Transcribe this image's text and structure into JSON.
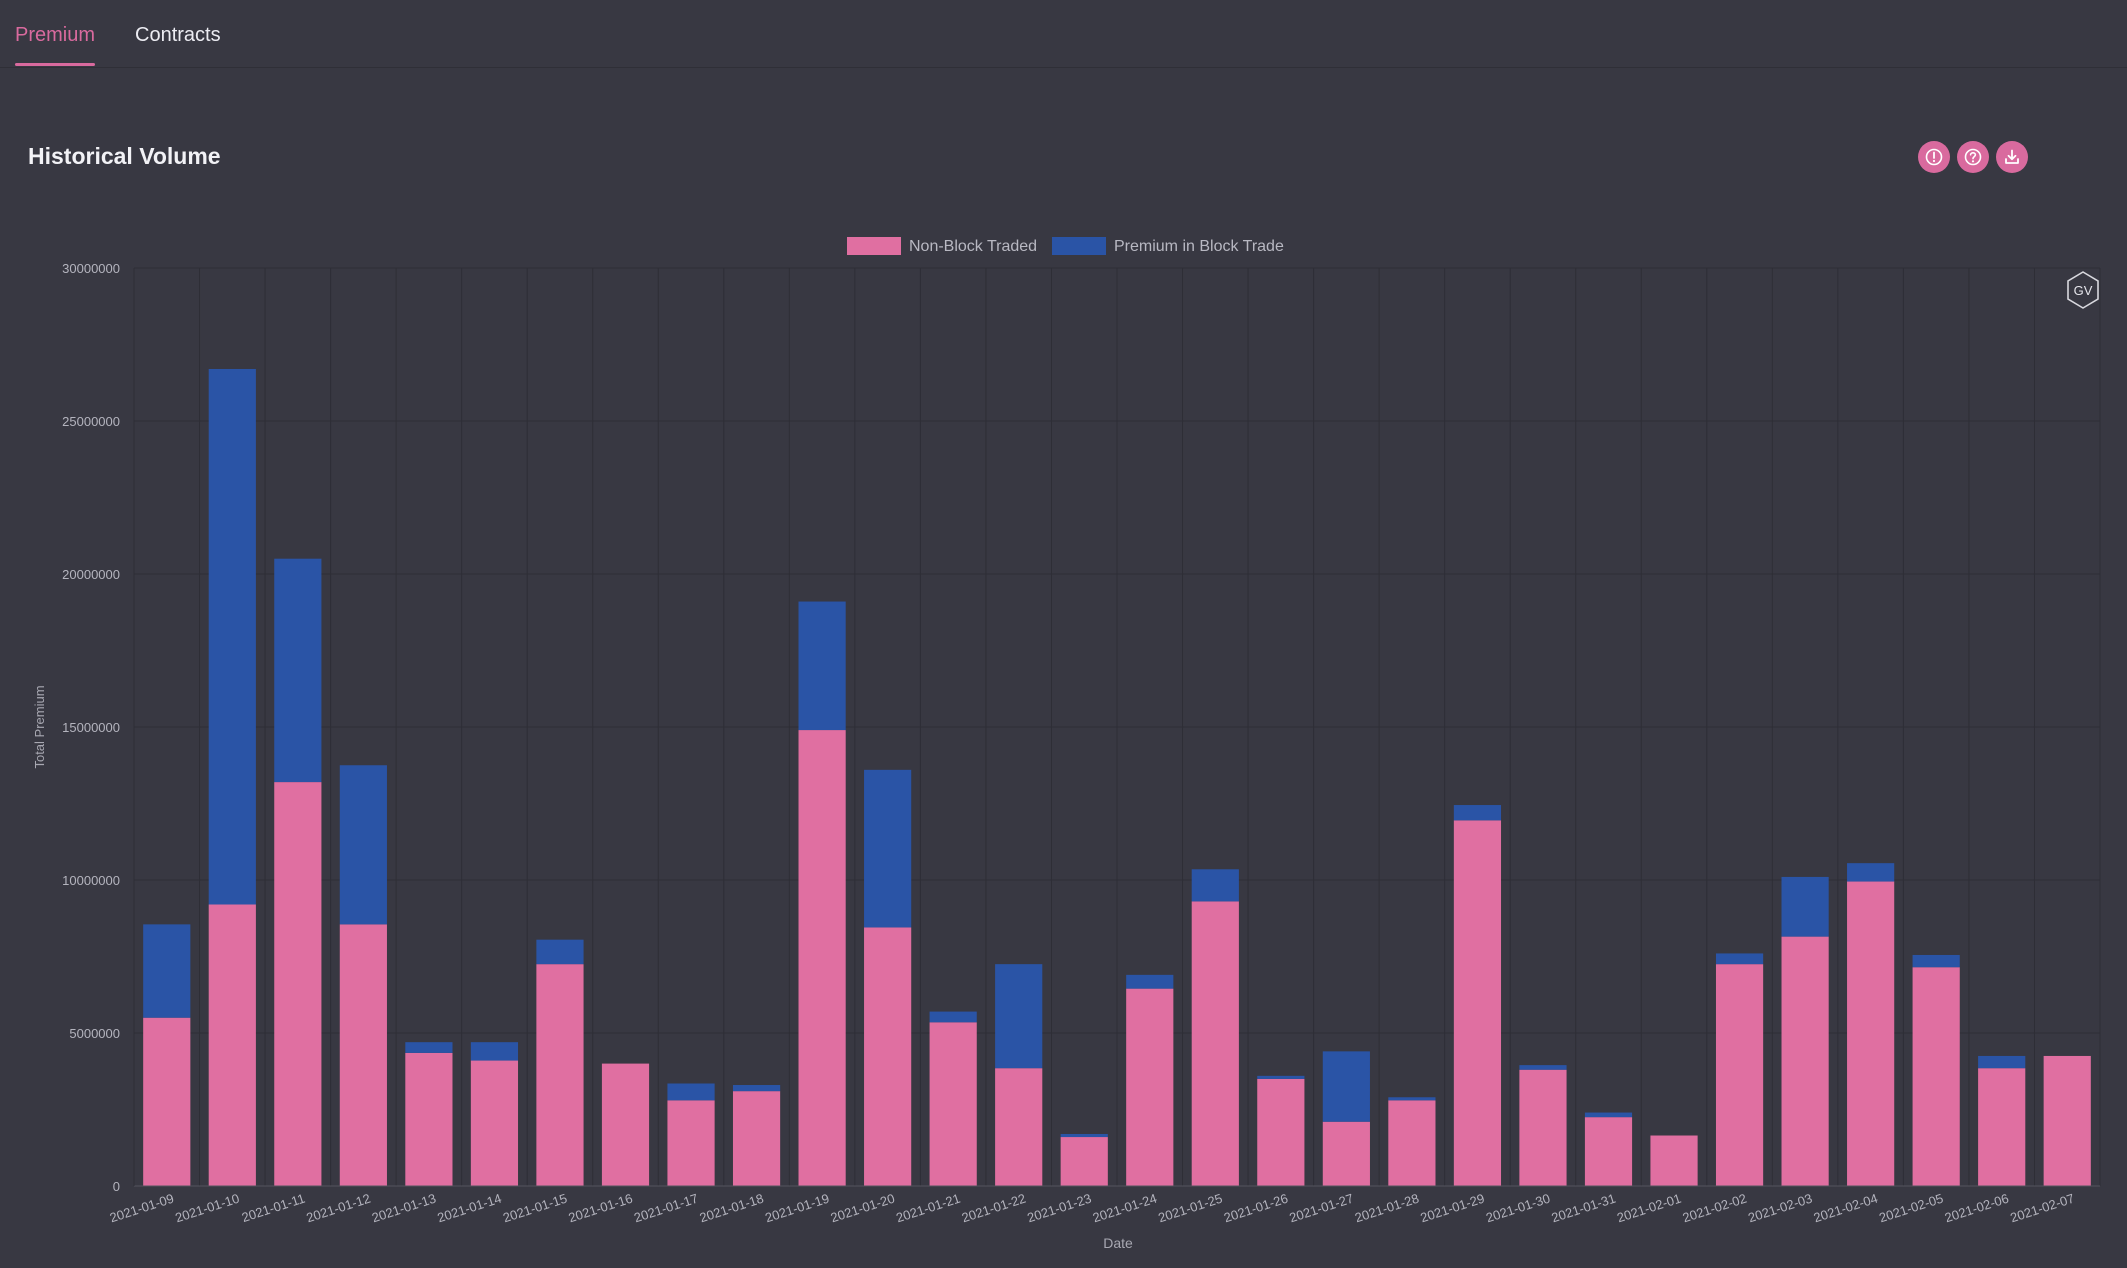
{
  "tabs": [
    {
      "label": "Premium",
      "active": true
    },
    {
      "label": "Contracts",
      "active": false
    }
  ],
  "page_title": "Historical Volume",
  "toolbar_icons": [
    "info-icon",
    "help-icon",
    "download-icon"
  ],
  "watermark": "GV",
  "colors": {
    "accent": "#d96a9e",
    "non_block": "#e06fa1",
    "block": "#2a54a6",
    "background": "#383842"
  },
  "chart_data": {
    "type": "bar",
    "stacked": true,
    "title": "",
    "xlabel": "Date",
    "ylabel": "Total Premium",
    "ylim": [
      0,
      30000000
    ],
    "yticks": [
      "0",
      "5000000",
      "10000000",
      "15000000",
      "20000000",
      "25000000",
      "30000000"
    ],
    "grid": true,
    "legend_position": "top-center",
    "categories": [
      "2021-01-09",
      "2021-01-10",
      "2021-01-11",
      "2021-01-12",
      "2021-01-13",
      "2021-01-14",
      "2021-01-15",
      "2021-01-16",
      "2021-01-17",
      "2021-01-18",
      "2021-01-19",
      "2021-01-20",
      "2021-01-21",
      "2021-01-22",
      "2021-01-23",
      "2021-01-24",
      "2021-01-25",
      "2021-01-26",
      "2021-01-27",
      "2021-01-28",
      "2021-01-29",
      "2021-01-30",
      "2021-01-31",
      "2021-02-01",
      "2021-02-02",
      "2021-02-03",
      "2021-02-04",
      "2021-02-05",
      "2021-02-06",
      "2021-02-07"
    ],
    "series": [
      {
        "name": "Non-Block Traded",
        "values": [
          5500000,
          9200000,
          13200000,
          8550000,
          4350000,
          4100000,
          7250000,
          4000000,
          2800000,
          3100000,
          14900000,
          8450000,
          5350000,
          3850000,
          1600000,
          6450000,
          9300000,
          3500000,
          2100000,
          2800000,
          11950000,
          3800000,
          2250000,
          1650000,
          7250000,
          8150000,
          9950000,
          7150000,
          3850000,
          4250000
        ]
      },
      {
        "name": "Premium in Block Trade",
        "values": [
          3050000,
          17500000,
          7300000,
          5200000,
          350000,
          600000,
          800000,
          0,
          550000,
          200000,
          4200000,
          5150000,
          350000,
          3400000,
          100000,
          450000,
          1050000,
          100000,
          2300000,
          100000,
          500000,
          150000,
          150000,
          0,
          350000,
          1950000,
          600000,
          400000,
          400000,
          0
        ]
      }
    ]
  }
}
